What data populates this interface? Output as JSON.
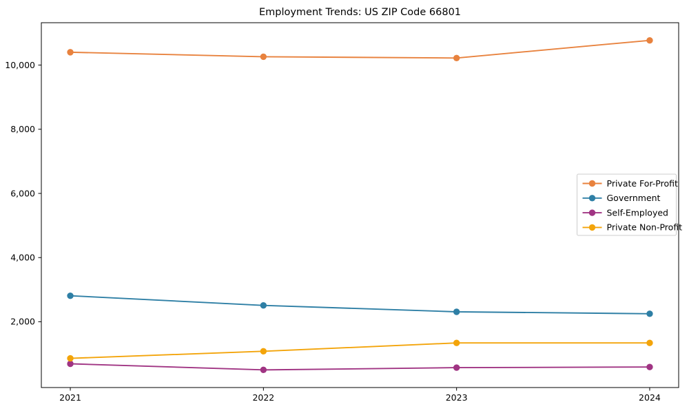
{
  "chart_data": {
    "type": "line",
    "title": "Employment Trends: US ZIP Code 66801",
    "x": [
      2021,
      2022,
      2023,
      2024
    ],
    "x_tick_labels": [
      "2021",
      "2022",
      "2023",
      "2024"
    ],
    "y_ticks": [
      2000,
      4000,
      6000,
      8000,
      10000
    ],
    "y_tick_labels": [
      "2,000",
      "4,000",
      "6,000",
      "8,000",
      "10,000"
    ],
    "xlim": [
      2020.85,
      2024.15
    ],
    "ylim": [
      -50,
      11320
    ],
    "grid": false,
    "legend_position": "center-right",
    "series": [
      {
        "name": "Private For-Profit",
        "color": "#e8823e",
        "values": [
          10400,
          10260,
          10220,
          10770
        ]
      },
      {
        "name": "Government",
        "color": "#2e7fa5",
        "values": [
          2810,
          2510,
          2310,
          2250
        ]
      },
      {
        "name": "Self-Employed",
        "color": "#a03483",
        "values": [
          690,
          500,
          570,
          590
        ]
      },
      {
        "name": "Private Non-Profit",
        "color": "#f3a40a",
        "values": [
          860,
          1080,
          1340,
          1340
        ]
      }
    ],
    "axis_color": "#000000",
    "legend_border_color": "#cccccc",
    "legend_background": "#ffffff"
  }
}
